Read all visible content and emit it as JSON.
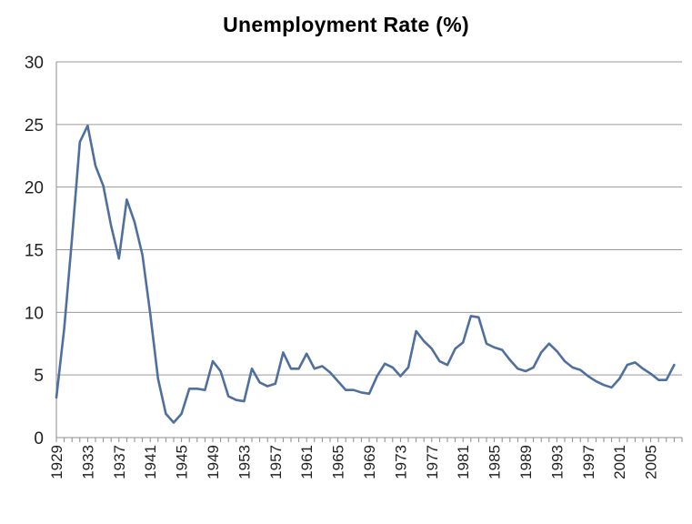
{
  "chart_data": {
    "type": "line",
    "title": "Unemployment Rate (%)",
    "xlabel": "",
    "ylabel": "",
    "ylim": [
      0,
      30
    ],
    "yticks": [
      0,
      5,
      10,
      15,
      20,
      25,
      30
    ],
    "xlim": [
      1929,
      2009
    ],
    "xticks": [
      "1929",
      "1933",
      "1937",
      "1941",
      "1945",
      "1949",
      "1953",
      "1957",
      "1961",
      "1965",
      "1969",
      "1973",
      "1977",
      "1981",
      "1985",
      "1989",
      "1993",
      "1997",
      "2001",
      "2005"
    ],
    "grid": "horizontal",
    "legend": "none",
    "line_color": "#4f6f9e",
    "series": [
      {
        "x": [
          1929,
          1930,
          1931,
          1932,
          1933,
          1934,
          1935,
          1936,
          1937,
          1938,
          1939,
          1940,
          1941,
          1942,
          1943,
          1944,
          1945,
          1946,
          1947,
          1948,
          1949,
          1950,
          1951,
          1952,
          1953,
          1954,
          1955,
          1956,
          1957,
          1958,
          1959,
          1960,
          1961,
          1962,
          1963,
          1964,
          1965,
          1966,
          1967,
          1968,
          1969,
          1970,
          1971,
          1972,
          1973,
          1974,
          1975,
          1976,
          1977,
          1978,
          1979,
          1980,
          1981,
          1982,
          1983,
          1984,
          1985,
          1986,
          1987,
          1988,
          1989,
          1990,
          1991,
          1992,
          1993,
          1994,
          1995,
          1996,
          1997,
          1998,
          1999,
          2000,
          2001,
          2002,
          2003,
          2004,
          2005,
          2006,
          2007,
          2008
        ],
        "values": [
          3.2,
          8.7,
          15.9,
          23.6,
          24.9,
          21.7,
          20.1,
          16.9,
          14.3,
          19.0,
          17.2,
          14.6,
          9.9,
          4.7,
          1.9,
          1.2,
          1.9,
          3.9,
          3.9,
          3.8,
          6.1,
          5.3,
          3.3,
          3.0,
          2.9,
          5.5,
          4.4,
          4.1,
          4.3,
          6.8,
          5.5,
          5.5,
          6.7,
          5.5,
          5.7,
          5.2,
          4.5,
          3.8,
          3.8,
          3.6,
          3.5,
          4.9,
          5.9,
          5.6,
          4.9,
          5.6,
          8.5,
          7.7,
          7.1,
          6.1,
          5.8,
          7.1,
          7.6,
          9.7,
          9.6,
          7.5,
          7.2,
          7.0,
          6.2,
          5.5,
          5.3,
          5.6,
          6.8,
          7.5,
          6.9,
          6.1,
          5.6,
          5.4,
          4.9,
          4.5,
          4.2,
          4.0,
          4.7,
          5.8,
          6.0,
          5.5,
          5.1,
          4.6,
          4.6,
          5.8
        ]
      }
    ]
  }
}
